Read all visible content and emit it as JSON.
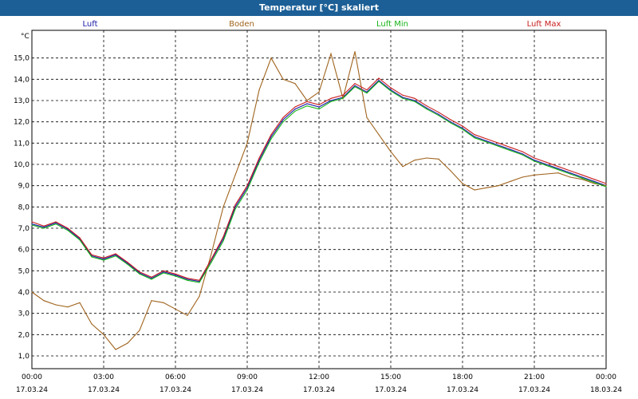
{
  "window": {
    "title": "Temperatur [°C] skaliert"
  },
  "chart_data": {
    "type": "line",
    "title": "Temperatur [°C] skaliert",
    "ylabel": "°C",
    "xlabel": "",
    "ylim": [
      0.4,
      16.3
    ],
    "xlim": [
      0,
      24
    ],
    "grid": true,
    "legend_position": "top",
    "y_ticks": [
      1.0,
      2.0,
      3.0,
      4.0,
      5.0,
      6.0,
      7.0,
      8.0,
      9.0,
      10.0,
      11.0,
      12.0,
      13.0,
      14.0,
      15.0
    ],
    "y_tick_labels": [
      "1,0",
      "2,0",
      "3,0",
      "4,0",
      "5,0",
      "6,0",
      "7,0",
      "8,0",
      "9,0",
      "10,0",
      "11,0",
      "12,0",
      "13,0",
      "14,0",
      "15,0"
    ],
    "x_ticks": [
      0,
      3,
      6,
      9,
      12,
      15,
      18,
      21,
      24
    ],
    "x_tick_labels": [
      {
        "time": "00:00",
        "date": "17.03.24"
      },
      {
        "time": "03:00",
        "date": "17.03.24"
      },
      {
        "time": "06:00",
        "date": "17.03.24"
      },
      {
        "time": "09:00",
        "date": "17.03.24"
      },
      {
        "time": "12:00",
        "date": "17.03.24"
      },
      {
        "time": "15:00",
        "date": "17.03.24"
      },
      {
        "time": "18:00",
        "date": "17.03.24"
      },
      {
        "time": "21:00",
        "date": "17.03.24"
      },
      {
        "time": "00:00",
        "date": "18.03.24"
      }
    ],
    "x": [
      0,
      0.5,
      1,
      1.5,
      2,
      2.5,
      3,
      3.5,
      4,
      4.5,
      5,
      5.5,
      6,
      6.5,
      7,
      7.5,
      8,
      8.5,
      9,
      9.5,
      10,
      10.5,
      11,
      11.5,
      12,
      12.5,
      13,
      13.5,
      14,
      14.5,
      15,
      15.5,
      16,
      16.5,
      17,
      17.5,
      18,
      18.5,
      19,
      19.5,
      20,
      20.5,
      21,
      21.5,
      22,
      22.5,
      23,
      23.5,
      24
    ],
    "series": [
      {
        "name": "Luft",
        "color": "#1a1aa6",
        "values": [
          7.2,
          7.05,
          7.25,
          6.95,
          6.5,
          5.7,
          5.55,
          5.75,
          5.35,
          4.9,
          4.65,
          4.95,
          4.8,
          4.6,
          4.5,
          5.5,
          6.5,
          8.0,
          8.9,
          10.2,
          11.3,
          12.1,
          12.6,
          12.85,
          12.7,
          13.0,
          13.15,
          13.7,
          13.4,
          13.95,
          13.5,
          13.15,
          13.0,
          12.65,
          12.35,
          12.0,
          11.7,
          11.3,
          11.1,
          10.9,
          10.7,
          10.5,
          10.2,
          10.0,
          9.8,
          9.6,
          9.4,
          9.2,
          9.0
        ]
      },
      {
        "name": "Boden",
        "color": "#a0641e",
        "values": [
          4.0,
          3.6,
          3.4,
          3.3,
          3.5,
          2.5,
          2.0,
          1.3,
          1.6,
          2.2,
          3.6,
          3.5,
          3.2,
          2.9,
          3.8,
          5.8,
          8.0,
          9.5,
          11.0,
          13.5,
          15.0,
          14.0,
          13.8,
          13.0,
          13.4,
          15.2,
          13.1,
          15.3,
          12.2,
          11.4,
          10.6,
          9.9,
          10.2,
          10.3,
          10.25,
          9.7,
          9.1,
          8.8,
          8.9,
          9.0,
          9.2,
          9.4,
          9.5,
          9.55,
          9.6,
          9.4,
          9.3,
          9.1,
          9.0
        ]
      },
      {
        "name": "Luft Min",
        "color": "#18b418",
        "values": [
          7.15,
          7.0,
          7.2,
          6.9,
          6.45,
          5.65,
          5.5,
          5.7,
          5.3,
          4.85,
          4.6,
          4.9,
          4.75,
          4.55,
          4.45,
          5.4,
          6.4,
          7.9,
          8.8,
          10.1,
          11.2,
          12.0,
          12.5,
          12.75,
          12.6,
          12.95,
          13.1,
          13.65,
          13.35,
          13.9,
          13.45,
          13.1,
          12.95,
          12.6,
          12.3,
          11.95,
          11.65,
          11.25,
          11.05,
          10.85,
          10.65,
          10.45,
          10.15,
          9.95,
          9.75,
          9.55,
          9.35,
          9.15,
          8.95
        ]
      },
      {
        "name": "Luft Max",
        "color": "#c81e1e",
        "values": [
          7.3,
          7.1,
          7.3,
          7.0,
          6.55,
          5.75,
          5.6,
          5.8,
          5.4,
          4.95,
          4.7,
          5.0,
          4.85,
          4.65,
          4.55,
          5.55,
          6.6,
          8.1,
          9.0,
          10.3,
          11.4,
          12.2,
          12.7,
          12.95,
          12.8,
          13.1,
          13.25,
          13.8,
          13.5,
          14.05,
          13.6,
          13.25,
          13.1,
          12.75,
          12.45,
          12.1,
          11.8,
          11.4,
          11.2,
          11.0,
          10.8,
          10.6,
          10.3,
          10.1,
          9.9,
          9.7,
          9.5,
          9.3,
          9.1
        ]
      }
    ]
  }
}
